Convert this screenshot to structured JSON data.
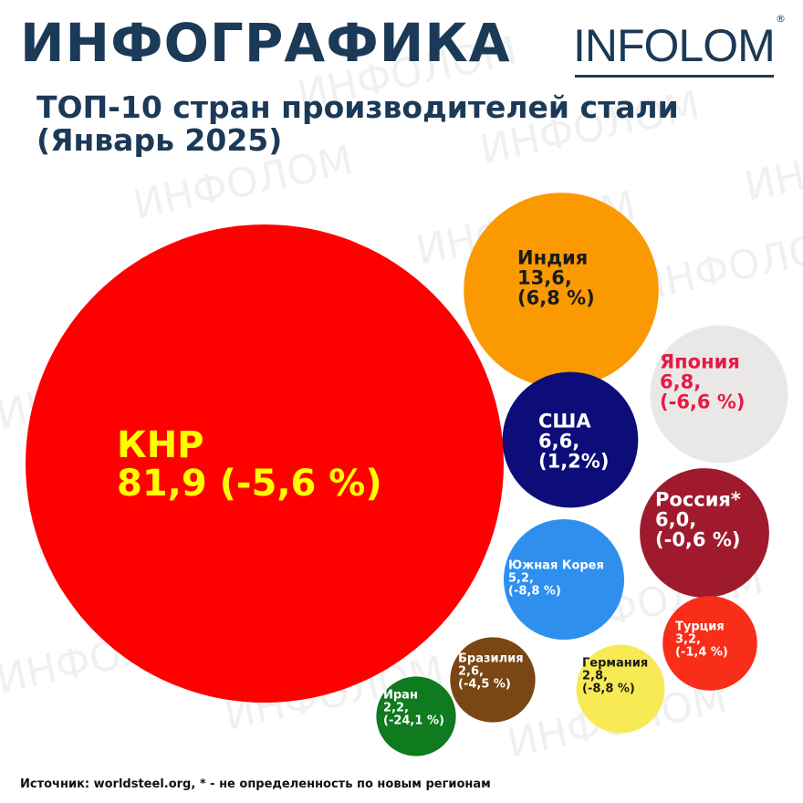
{
  "header": {
    "title": "ИНФОГРАФИКА",
    "logo_text": "INFOLOM",
    "logo_mark": "®"
  },
  "watermark": {
    "text": "ИНФОЛОМ"
  },
  "chart_data": {
    "type": "bubble",
    "title_line1": "ТОП-10 стран производителей стали",
    "title_line2": "(Январь 2025)",
    "unit_note": "",
    "points": [
      {
        "country": "КНР",
        "value": 81.9,
        "value_label": "81,9",
        "change_label": "(-5,6 %)",
        "change": -5.6,
        "color": "#ff0000",
        "text_color": "#ffff00"
      },
      {
        "country": "Индия",
        "value": 13.6,
        "value_label": "13,6,",
        "change_label": "(6,8 %)",
        "change": 6.8,
        "color": "#fa9a00",
        "text_color": "#1a1a1a"
      },
      {
        "country": "Япония",
        "value": 6.8,
        "value_label": "6,8,",
        "change_label": "(-6,6 %)",
        "change": -6.6,
        "color": "#e9e8e6",
        "text_color": "#e51a45"
      },
      {
        "country": "США",
        "value": 6.6,
        "value_label": "6,6,",
        "change_label": "(1,2%)",
        "change": 1.2,
        "color": "#0d0d7a",
        "text_color": "#ffffff"
      },
      {
        "country": "Россия*",
        "value": 6.0,
        "value_label": "6,0,",
        "change_label": "(-0,6 %)",
        "change": -0.6,
        "color": "#a01a2e",
        "text_color": "#ffffff"
      },
      {
        "country": "Южная Корея",
        "value": 5.2,
        "value_label": "5,2,",
        "change_label": "(-8,8 %)",
        "change": -8.8,
        "color": "#2e8fef",
        "text_color": "#ffffff"
      },
      {
        "country": "Турция",
        "value": 3.2,
        "value_label": "3,2,",
        "change_label": "(-1,4 %)",
        "change": -1.4,
        "color": "#f82d1a",
        "text_color": "#ffffff"
      },
      {
        "country": "Германия",
        "value": 2.8,
        "value_label": "2,8,",
        "change_label": "(-8,8 %)",
        "change": -8.8,
        "color": "#f7ea55",
        "text_color": "#1a1a1a"
      },
      {
        "country": "Бразилия",
        "value": 2.6,
        "value_label": "2,6,",
        "change_label": "(-4,5 %)",
        "change": -4.5,
        "color": "#7a4614",
        "text_color": "#ffffff"
      },
      {
        "country": "Иран",
        "value": 2.2,
        "value_label": "2,2,",
        "change_label": "(-24,1 %)",
        "change": -24.1,
        "color": "#0f7a1e",
        "text_color": "#ffffff"
      }
    ]
  },
  "footer": {
    "source": "Источник: worldsteel.org,  * - не определенность по новым регионам"
  }
}
